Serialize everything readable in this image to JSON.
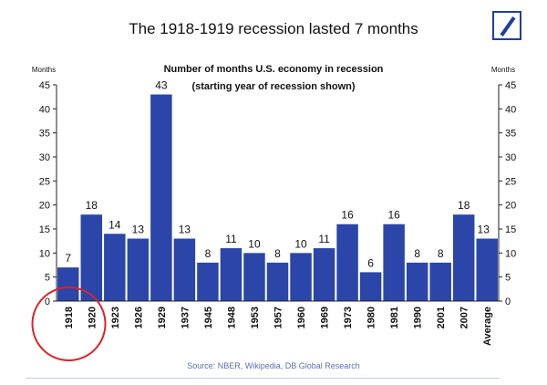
{
  "title": "The 1918-1919 recession lasted 7 months",
  "source": "Source: NBER, Wikipedia, DB Global Research",
  "logo_icon": "deutsche-bank-logo",
  "chart_data": {
    "type": "bar",
    "title": "Number of months U.S. economy in recession",
    "subtitle": "(starting year of recession shown)",
    "ylabel_left": "Months",
    "ylabel_right": "Months",
    "ylim": [
      0,
      45
    ],
    "yticks": [
      0,
      5,
      10,
      15,
      20,
      25,
      30,
      35,
      40,
      45
    ],
    "grid": false,
    "bar_color": "#2b46a8",
    "highlight_color": "#d9242b",
    "highlight_category": "1918",
    "categories": [
      "1918",
      "1920",
      "1923",
      "1926",
      "1929",
      "1937",
      "1945",
      "1948",
      "1953",
      "1957",
      "1960",
      "1969",
      "1973",
      "1980",
      "1981",
      "1990",
      "2001",
      "2007",
      "Average"
    ],
    "values": [
      7,
      18,
      14,
      13,
      43,
      13,
      8,
      11,
      10,
      8,
      10,
      11,
      16,
      6,
      16,
      8,
      8,
      18,
      13
    ]
  }
}
